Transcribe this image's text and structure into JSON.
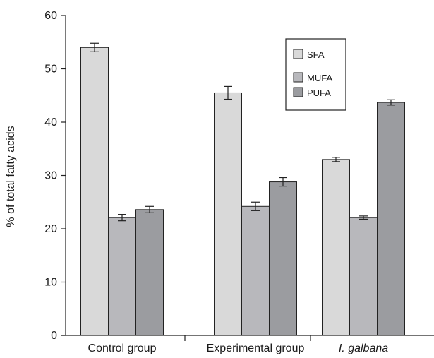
{
  "chart_data": {
    "type": "bar",
    "title": "",
    "xlabel": "",
    "ylabel": "% of total fatty acids",
    "ylim": [
      0,
      60
    ],
    "yticks": [
      0,
      10,
      20,
      30,
      40,
      50,
      60
    ],
    "grid": false,
    "legend_position": "top-right",
    "categories": [
      "Control group",
      "Experimental group",
      "I. galbana"
    ],
    "italic_categories": [
      "I. galbana"
    ],
    "series": [
      {
        "name": "SFA",
        "color": "#d9d9d9",
        "values": [
          54.0,
          45.5,
          33.0
        ],
        "errors": [
          0.8,
          1.2,
          0.4
        ]
      },
      {
        "name": "MUFA",
        "color": "#b8b8bc",
        "values": [
          22.1,
          24.2,
          22.1
        ],
        "errors": [
          0.6,
          0.8,
          0.3
        ]
      },
      {
        "name": "PUFA",
        "color": "#9b9ca0",
        "values": [
          23.6,
          28.8,
          43.7
        ],
        "errors": [
          0.6,
          0.8,
          0.5
        ]
      }
    ]
  }
}
